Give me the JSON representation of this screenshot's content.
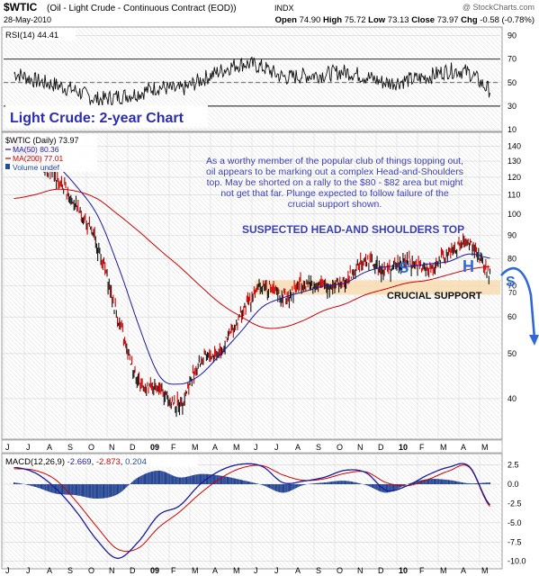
{
  "header": {
    "symbol": "$WTIC",
    "name": "(Oil - Light Crude - Continuous Contract (EOD))",
    "exchange": "INDX",
    "watermark": "@ StockCharts.com",
    "date": "28-May-2010",
    "quote": {
      "open_label": "Open",
      "open": "74.90",
      "high_label": "High",
      "high": "75.72",
      "low_label": "Low",
      "low": "73.13",
      "close_label": "Close",
      "close": "73.97",
      "chg_label": "Chg",
      "chg": "-0.58 (-0.78%)"
    }
  },
  "rsi_panel": {
    "label": "RSI(14)",
    "value": "44.41",
    "ticks": [
      "10",
      "30",
      "50",
      "70",
      "90"
    ],
    "overbought": 70,
    "oversold": 30,
    "midline": 50
  },
  "price_panel": {
    "chart_title": "Light Crude: 2-year Chart",
    "legend": [
      {
        "text": "$WTIC (Daily) 73.97",
        "color": "#000000"
      },
      {
        "text": "MA(50) 80.36",
        "color": "#1a1aa0"
      },
      {
        "text": "MA(200) 77.01",
        "color": "#cc0000"
      },
      {
        "text": "Volume undef",
        "color": "#1f4e9a"
      }
    ],
    "ticks": [
      "40",
      "50",
      "60",
      "70",
      "80",
      "90",
      "100",
      "110",
      "120",
      "130",
      "140"
    ],
    "commentary": "As a worthy member of the popular club of things topping out, oil appears to be marking out a complex Head-and-Shoulders top. May be shorted on a rally to the $80 - $82 area but might not get that far. Plunge expected to follow failure of the crucial support shown.",
    "pattern_title": "SUSPECTED HEAD-AND SHOULDERS TOP",
    "support_label": "CRUCIAL SUPPORT",
    "support_value_tag": "70",
    "shoulder_left": "S",
    "head": "H",
    "shoulder_right": "S"
  },
  "month_axis": [
    "J",
    "J",
    "A",
    "S",
    "O",
    "N",
    "D",
    "09",
    "F",
    "M",
    "A",
    "M",
    "J",
    "J",
    "A",
    "S",
    "O",
    "N",
    "D",
    "10",
    "F",
    "M",
    "A",
    "M"
  ],
  "macd_panel": {
    "label": "MACD(12,26,9)",
    "macd_value": "-2.669",
    "signal_value": "-2.873",
    "hist_value": "0.204",
    "ticks": [
      "2.5",
      "0.0",
      "-2.5",
      "-5.0",
      "-7.5",
      "-10.0"
    ]
  },
  "colors": {
    "price_bar": "#111111",
    "price_bar_down": "#cc0000",
    "ma50": "#1a1aa0",
    "ma200": "#cc0000",
    "support_band": "#f7dcb0",
    "annotation": "#3b3fb7",
    "arrow": "#2f68d8",
    "hist": "#1f3f8f",
    "grid": "#d3d3d3",
    "title_text": "#2c2cb0"
  },
  "chart_data": [
    {
      "type": "line",
      "title": "RSI(14)",
      "x": [
        "J",
        "J",
        "A",
        "S",
        "O",
        "N",
        "D",
        "09",
        "F",
        "M",
        "A",
        "M",
        "J",
        "J",
        "A",
        "S",
        "O",
        "N",
        "D",
        "10",
        "F",
        "M",
        "A",
        "M"
      ],
      "series": [
        {
          "name": "RSI(14)",
          "values": [
            58,
            52,
            48,
            43,
            36,
            38,
            41,
            46,
            44,
            52,
            60,
            66,
            63,
            55,
            56,
            57,
            59,
            55,
            50,
            52,
            55,
            60,
            58,
            44
          ]
        }
      ],
      "ylim": [
        10,
        95
      ]
    },
    {
      "type": "line",
      "title": "$WTIC (Daily)",
      "x": [
        "J",
        "J",
        "A",
        "S",
        "O",
        "N",
        "D",
        "09",
        "F",
        "M",
        "A",
        "M",
        "J",
        "J",
        "A",
        "S",
        "O",
        "N",
        "D",
        "10",
        "F",
        "M",
        "A",
        "M"
      ],
      "series": [
        {
          "name": "$WTIC (Daily)",
          "values": [
            140,
            133,
            120,
            104,
            86,
            60,
            44,
            42,
            39,
            48,
            51,
            61,
            70,
            66,
            71,
            70,
            72,
            79,
            76,
            79,
            76,
            82,
            86,
            74
          ]
        },
        {
          "name": "MA(50)",
          "values": [
            128,
            136,
            128,
            115,
            100,
            78,
            58,
            45,
            43,
            45,
            50,
            56,
            63,
            66,
            68,
            70,
            71,
            75,
            77,
            77,
            78,
            79,
            82,
            80.36
          ]
        },
        {
          "name": "MA(200)",
          "values": [
            108,
            110,
            113,
            112,
            108,
            100,
            92,
            84,
            77,
            70,
            64,
            60,
            57,
            57,
            59,
            62,
            64,
            67,
            69,
            71,
            72,
            74,
            76,
            77.01
          ]
        }
      ],
      "ylim": [
        33,
        148
      ]
    },
    {
      "type": "line",
      "title": "MACD(12,26,9)",
      "x": [
        "J",
        "J",
        "A",
        "S",
        "O",
        "N",
        "D",
        "09",
        "F",
        "M",
        "A",
        "M",
        "J",
        "J",
        "A",
        "S",
        "O",
        "N",
        "D",
        "10",
        "F",
        "M",
        "A",
        "M"
      ],
      "series": [
        {
          "name": "MACD",
          "values": [
            2.2,
            1.5,
            -0.5,
            -3.5,
            -7.2,
            -9.6,
            -7.5,
            -4,
            -2.8,
            0,
            1.8,
            2.6,
            2.3,
            0.2,
            0.4,
            0.9,
            1.8,
            1.5,
            -0.8,
            -0.2,
            1.2,
            2.2,
            2.3,
            -2.669
          ]
        },
        {
          "name": "Signal",
          "values": [
            2,
            1.8,
            0.6,
            -2.2,
            -5.5,
            -8.4,
            -8.3,
            -5.6,
            -3.6,
            -1.2,
            0.8,
            2.1,
            2.4,
            1.2,
            0.5,
            0.7,
            1.4,
            1.6,
            0.2,
            -0.2,
            0.6,
            1.7,
            2.2,
            -2.873
          ]
        }
      ],
      "ylim": [
        -10.5,
        3.5
      ]
    }
  ]
}
